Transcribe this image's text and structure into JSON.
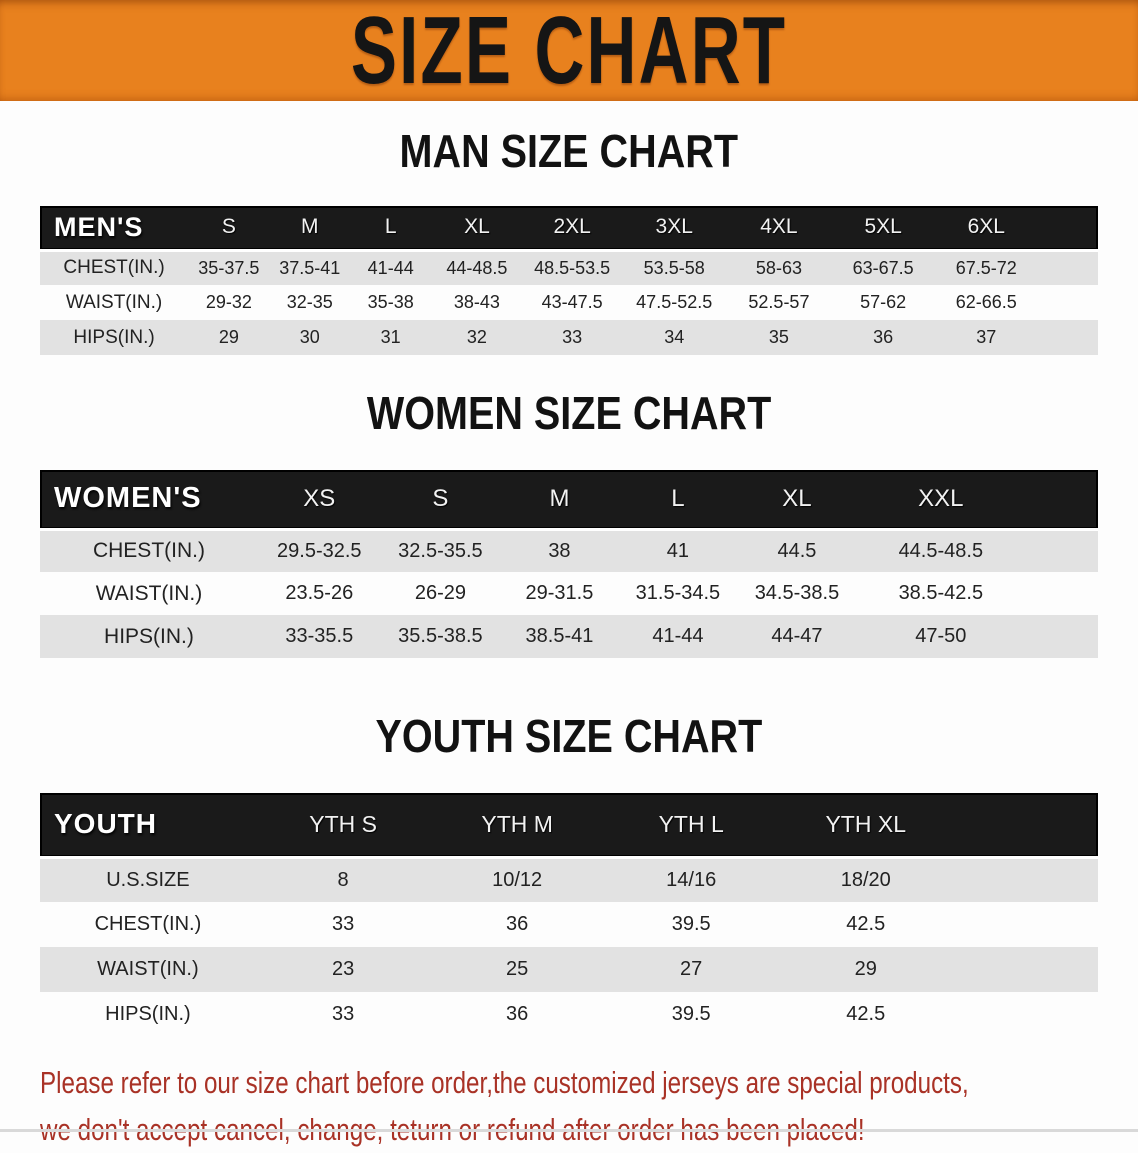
{
  "banner": {
    "title": "SIZE CHART"
  },
  "sections": [
    {
      "id": "men",
      "title": "MAN SIZE CHART",
      "header_label": "MEN'S",
      "columns": [
        "S",
        "M",
        "L",
        "XL",
        "2XL",
        "3XL",
        "4XL",
        "5XL",
        "6XL"
      ],
      "rows": [
        {
          "label": "CHEST(IN.)",
          "values": [
            "35-37.5",
            "37.5-41",
            "41-44",
            "44-48.5",
            "48.5-53.5",
            "53.5-58",
            "58-63",
            "63-67.5",
            "67.5-72"
          ]
        },
        {
          "label": "WAIST(IN.)",
          "values": [
            "29-32",
            "32-35",
            "35-38",
            "38-43",
            "43-47.5",
            "47.5-52.5",
            "52.5-57",
            "57-62",
            "62-66.5"
          ]
        },
        {
          "label": "HIPS(IN.)",
          "values": [
            "29",
            "30",
            "31",
            "32",
            "33",
            "34",
            "35",
            "36",
            "37"
          ]
        }
      ]
    },
    {
      "id": "women",
      "title": "WOMEN SIZE CHART",
      "header_label": "WOMEN'S",
      "columns": [
        "XS",
        "S",
        "M",
        "L",
        "XL",
        "XXL"
      ],
      "rows": [
        {
          "label": "CHEST(IN.)",
          "values": [
            "29.5-32.5",
            "32.5-35.5",
            "38",
            "41",
            "44.5",
            "44.5-48.5"
          ]
        },
        {
          "label": "WAIST(IN.)",
          "values": [
            "23.5-26",
            "26-29",
            "29-31.5",
            "31.5-34.5",
            "34.5-38.5",
            "38.5-42.5"
          ]
        },
        {
          "label": "HIPS(IN.)",
          "values": [
            "33-35.5",
            "35.5-38.5",
            "38.5-41",
            "41-44",
            "44-47",
            "47-50"
          ]
        }
      ]
    },
    {
      "id": "youth",
      "title": "YOUTH SIZE CHART",
      "header_label": "YOUTH",
      "columns": [
        "YTH S",
        "YTH M",
        "YTH L",
        "YTH XL"
      ],
      "rows": [
        {
          "label": "U.S.SIZE",
          "values": [
            "8",
            "10/12",
            "14/16",
            "18/20"
          ]
        },
        {
          "label": "CHEST(IN.)",
          "values": [
            "33",
            "36",
            "39.5",
            "42.5"
          ]
        },
        {
          "label": "WAIST(IN.)",
          "values": [
            "23",
            "25",
            "27",
            "29"
          ]
        },
        {
          "label": "HIPS(IN.)",
          "values": [
            "33",
            "36",
            "39.5",
            "42.5"
          ]
        }
      ]
    }
  ],
  "disclaimer": {
    "line1": "Please refer to our size chart before order,the customized jerseys are special products,",
    "line2": "we don't accept cancel, change, teturn or refund after order has been placed!"
  },
  "colors": {
    "banner_orange": "#E8811E",
    "header_black": "#1A1A1A",
    "row_gray": "#E2E2E2",
    "row_white": "#FDFDFD",
    "disclaimer_red": "#A93226",
    "title_black": "#121212"
  }
}
